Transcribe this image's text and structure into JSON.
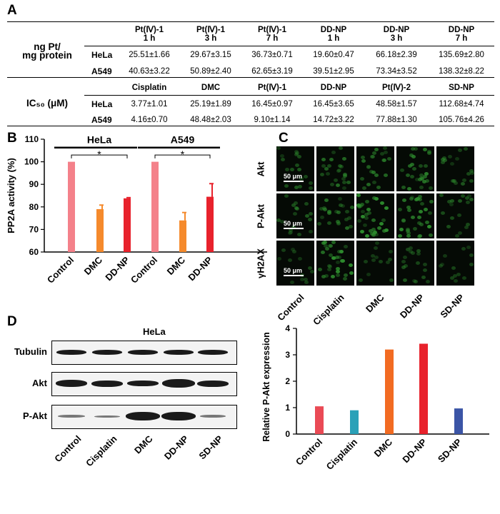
{
  "panels": {
    "a": "A",
    "b": "B",
    "c": "C",
    "d": "D"
  },
  "table": {
    "section1_label_line1": "ng Pt/",
    "section1_label_line2": "mg protein",
    "section1_headers": [
      {
        "l1": "Pt(Ⅳ)-1",
        "l2": "1 h"
      },
      {
        "l1": "Pt(Ⅳ)-1",
        "l2": "3 h"
      },
      {
        "l1": "Pt(Ⅳ)-1",
        "l2": "7 h"
      },
      {
        "l1": "DD-NP",
        "l2": "1 h"
      },
      {
        "l1": "DD-NP",
        "l2": "3 h"
      },
      {
        "l1": "DD-NP",
        "l2": "7 h"
      }
    ],
    "section1_rows": [
      {
        "cell": "HeLa",
        "values": [
          "25.51±1.66",
          "29.67±3.15",
          "36.73±0.71",
          "19.60±0.47",
          "66.18±2.39",
          "135.69±2.80"
        ]
      },
      {
        "cell": "A549",
        "values": [
          "40.63±3.22",
          "50.89±2.40",
          "62.65±3.19",
          "39.51±2.95",
          "73.34±3.52",
          "138.32±8.22"
        ]
      }
    ],
    "section2_label": "IC₅₀ (μM)",
    "section2_headers": [
      "Cisplatin",
      "DMC",
      "Pt(Ⅳ)-1",
      "DD-NP",
      "Pt(Ⅳ)-2",
      "SD-NP"
    ],
    "section2_rows": [
      {
        "cell": "HeLa",
        "values": [
          "3.77±1.01",
          "25.19±1.89",
          "16.45±0.97",
          "16.45±3.65",
          "48.58±1.57",
          "112.68±4.74"
        ]
      },
      {
        "cell": "A549",
        "values": [
          "4.16±0.70",
          "48.48±2.03",
          "9.10±1.14",
          "14.72±3.22",
          "77.88±1.30",
          "105.76±4.26"
        ]
      }
    ]
  },
  "chart_data": [
    {
      "type": "bar",
      "ylabel": "PP2A activity (%)",
      "ylim": [
        60,
        110
      ],
      "yticks": [
        "60",
        "70",
        "80",
        "90",
        "100",
        "110"
      ],
      "groups": [
        {
          "name": "HeLa",
          "significance": "*"
        },
        {
          "name": "A549",
          "significance": "*"
        }
      ],
      "categories": [
        "Control",
        "DMC",
        "DD-NP",
        "Control",
        "DMC",
        "DD-NP"
      ],
      "values": [
        100,
        79,
        83.8,
        100,
        74,
        84.5
      ],
      "errors": [
        0,
        1.8,
        0.3,
        0,
        3.5,
        5.8
      ],
      "colors": [
        "#f4818a",
        "#f58a2c",
        "#e8222c",
        "#f4818a",
        "#f58a2c",
        "#e8222c"
      ]
    },
    {
      "type": "bar",
      "ylabel": "Relative P-Akt expression",
      "ylim": [
        0,
        4
      ],
      "yticks": [
        "0",
        "1",
        "2",
        "3",
        "4"
      ],
      "categories": [
        "Control",
        "Cisplatin",
        "DMC",
        "DD-NP",
        "SD-NP"
      ],
      "values": [
        1.05,
        0.9,
        3.2,
        3.42,
        0.97
      ],
      "colors": [
        "#ea4a55",
        "#2aa1b8",
        "#f26b22",
        "#e8222c",
        "#3b55a6"
      ]
    }
  ],
  "microscopy": {
    "rows": [
      "Akt",
      "P-Akt",
      "γH2AX"
    ],
    "columns": [
      "Control",
      "Cisplatin",
      "DMC",
      "DD-NP",
      "SD-NP"
    ],
    "scale_label": "50 μm"
  },
  "western": {
    "title": "HeLa",
    "rows": [
      "Tubulin",
      "Akt",
      "P-Akt"
    ],
    "lanes": [
      "Control",
      "Cisplatin",
      "DMC",
      "DD-NP",
      "SD-NP"
    ]
  },
  "colors": {
    "micro_bg": "#050a05",
    "micro_green": "#2d8a2d"
  }
}
